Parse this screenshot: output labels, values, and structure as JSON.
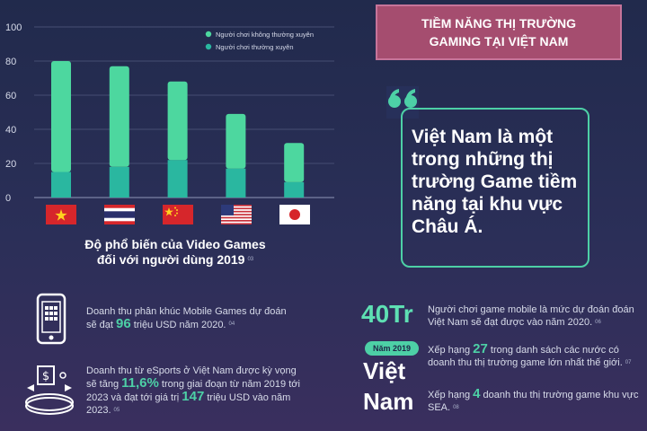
{
  "chart_data": {
    "type": "bar",
    "stacked": true,
    "yticks": [
      "0",
      "20",
      "40",
      "60",
      "80",
      "100"
    ],
    "ylim": [
      0,
      100
    ],
    "categories": [
      "VN",
      "TH",
      "CN",
      "US",
      "JP"
    ],
    "series": [
      {
        "name": "Người chơi thường xuyên",
        "color": "#2ab7a0",
        "values": [
          15,
          18,
          22,
          17,
          9
        ]
      },
      {
        "name": "Người chơi không thường xuyên",
        "color": "#4dd79f",
        "values": [
          65,
          59,
          46,
          32,
          23
        ]
      }
    ],
    "legend_position": "top-right",
    "caption_line1": "Độ phổ biến của Video Games",
    "caption_line2": "đối với người dùng 2019",
    "caption_ref": "03"
  },
  "banner": {
    "line1": "TIỀM NĂNG THỊ TRƯỜNG",
    "line2": "GAMING TẠI VIỆT NAM"
  },
  "quote": {
    "text": "Việt Nam là một trong những thị trường Game tiềm năng tại khu vực Châu Á."
  },
  "mobile": {
    "pre": "Doanh thu phân khúc Mobile Games dự đoán sẽ đạt ",
    "value": "96",
    "post": " triệu USD năm 2020.",
    "ref": "04"
  },
  "esports": {
    "pre": "Doanh thu từ eSports ở Việt Nam được kỳ vọng sẽ tăng ",
    "v1": "11,6%",
    "mid": " trong giai đoạn từ năm 2019 tới 2023 và đạt tới giá trị ",
    "v2": "147",
    "post": " triệu USD vào năm 2023.",
    "ref": "05"
  },
  "players": {
    "stat": "40Tr",
    "text": "Người chơi game mobile là mức dự đoán đoán Việt Nam sẽ đạt được vào năm 2020.",
    "ref": "06"
  },
  "ranking": {
    "year_badge": "Năm 2019",
    "word1": "Việt",
    "word2": "Nam",
    "r1_pre": "Xếp hạng ",
    "r1_num": "27",
    "r1_post": " trong danh sách các nước có doanh thu thị trường game lớn nhất thế giới.",
    "r1_ref": "07",
    "r2_pre": "Xếp hạng ",
    "r2_num": "4",
    "r2_post": " doanh thu thị trường game khu vực SEA.",
    "r2_ref": "08"
  },
  "colors": {
    "accent": "#4dd0a6",
    "banner": "#a54d6f"
  }
}
